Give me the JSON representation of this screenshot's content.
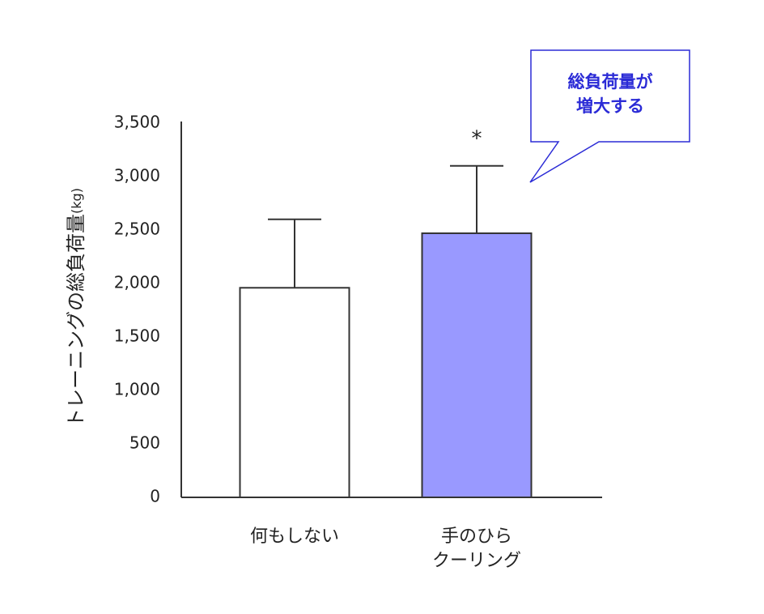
{
  "chart_data": {
    "type": "bar",
    "ylabel": "トレーニングの総負荷量",
    "ylabel_unit": "(kg)",
    "categories": [
      "何もしない",
      "手のひら\nクーリング"
    ],
    "values": [
      1960,
      2470
    ],
    "errors": [
      640,
      630
    ],
    "colors": [
      "#ffffff",
      "#9999ff"
    ],
    "ylim": [
      0,
      3500
    ],
    "yticks": [
      0,
      500,
      {
        "value": 1000,
        "label": "1,000"
      },
      {
        "value": 1500,
        "label": "1,500"
      },
      {
        "value": 2000,
        "label": "2,000"
      },
      {
        "value": 2500,
        "label": "2,500"
      },
      {
        "value": 3000,
        "label": "3,000"
      },
      {
        "value": 3500,
        "label": "3,500"
      }
    ],
    "significance": "*",
    "callout": "総負荷量が\n増大する"
  }
}
